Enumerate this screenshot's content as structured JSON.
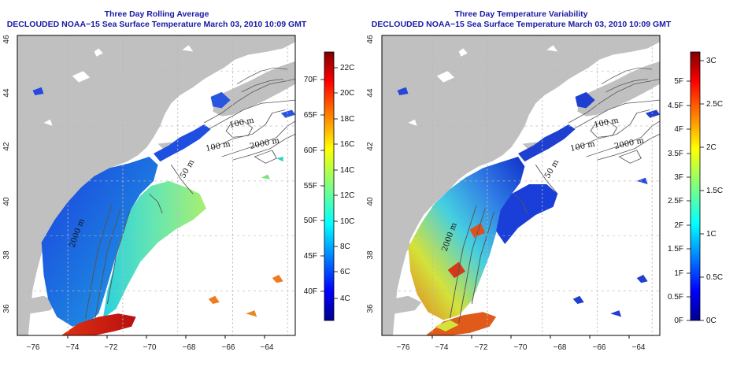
{
  "panels": [
    {
      "id": "avg",
      "title_line1": "Three Day Rolling Average",
      "title_line2": "DECLOUDED NOAA−15 Sea Surface Temperature March 03, 2010 10:09 GMT",
      "x_ticks": [
        "−76",
        "−74",
        "−72",
        "−70",
        "−68",
        "−66",
        "−64"
      ],
      "y_ticks": [
        "36",
        "38",
        "40",
        "42",
        "44",
        "46"
      ],
      "colorbar_c_labels": [
        "4C",
        "6C",
        "8C",
        "10C",
        "12C",
        "14C",
        "16C",
        "18C",
        "20C",
        "22C"
      ],
      "colorbar_f_labels": [
        "40F",
        "45F",
        "50F",
        "55F",
        "60F",
        "65F",
        "70F"
      ],
      "contour_labels": [
        "100 m",
        "100 m",
        "2000 m",
        "50 m",
        "2000 m"
      ]
    },
    {
      "id": "var",
      "title_line1": "Three Day Temperature Variability",
      "title_line2": "DECLOUDED NOAA−15 Sea Surface Temperature March 03, 2010 10:09 GMT",
      "x_ticks": [
        "−76",
        "−74",
        "−72",
        "−70",
        "−68",
        "−66",
        "−64"
      ],
      "y_ticks": [
        "36",
        "38",
        "40",
        "42",
        "44",
        "46"
      ],
      "colorbar_c_labels": [
        "0C",
        "0.5C",
        "1C",
        "1.5C",
        "2C",
        "2.5C",
        "3C"
      ],
      "colorbar_f_labels": [
        "0F",
        "0.5F",
        "1F",
        "1.5F",
        "2F",
        "2.5F",
        "3F",
        "3.5F",
        "4F",
        "4.5F",
        "5F"
      ],
      "contour_labels": [
        "100 m",
        "100 m",
        "2000 m",
        "50 m",
        "2000 m"
      ]
    }
  ],
  "colors": {
    "land": "#c0c0c0",
    "title": "#1a1aa6",
    "grid": "#b8b8b8",
    "contour": "#555555"
  }
}
